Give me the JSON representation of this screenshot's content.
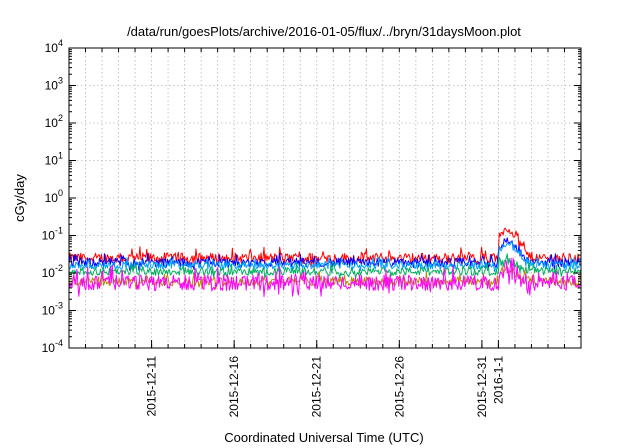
{
  "chart_data": {
    "type": "line",
    "title": "/data/run/goesPlots/archive/2016-01-05/flux/../bryn/31daysMoon.plot",
    "xlabel": "Coordinated Universal Time (UTC)",
    "ylabel": "cGy/day",
    "y_scale": "log",
    "ylim": [
      0.0001,
      10000
    ],
    "y_ticks": [
      {
        "value": 0.0001,
        "base": "10",
        "exp": "-4"
      },
      {
        "value": 0.001,
        "base": "10",
        "exp": "-3"
      },
      {
        "value": 0.01,
        "base": "10",
        "exp": "-2"
      },
      {
        "value": 0.1,
        "base": "10",
        "exp": "-1"
      },
      {
        "value": 1,
        "base": "10",
        "exp": "0"
      },
      {
        "value": 10,
        "base": "10",
        "exp": "1"
      },
      {
        "value": 100,
        "base": "10",
        "exp": "2"
      },
      {
        "value": 1000,
        "base": "10",
        "exp": "3"
      },
      {
        "value": 10000,
        "base": "10",
        "exp": "4"
      }
    ],
    "xlim": [
      "2015-12-06",
      "2016-01-06"
    ],
    "x_ticks": [
      "2015-12-11",
      "2015-12-16",
      "2015-12-21",
      "2015-12-26",
      "2015-12-31",
      "2016-1-1"
    ],
    "grid": true,
    "series": [
      {
        "color": "#ff0000",
        "level": 0.025,
        "amp": 0.4,
        "event_peak": 0.15
      },
      {
        "color": "#0000ff",
        "level": 0.019,
        "amp": 0.35,
        "event_peak": 0.07
      },
      {
        "color": "#00a0ff",
        "level": 0.016,
        "amp": 0.3,
        "event_peak": 0.06
      },
      {
        "color": "#00b060",
        "level": 0.011,
        "amp": 0.3,
        "event_peak": 0.02
      },
      {
        "color": "#b8860b",
        "level": 0.006,
        "amp": 0.35,
        "event_peak": 0.012
      },
      {
        "color": "#ff00ff",
        "level": 0.0055,
        "amp": 0.6,
        "event_peak": 0.01
      }
    ],
    "event_range": [
      "2016-01-01",
      "2016-01-02"
    ]
  }
}
